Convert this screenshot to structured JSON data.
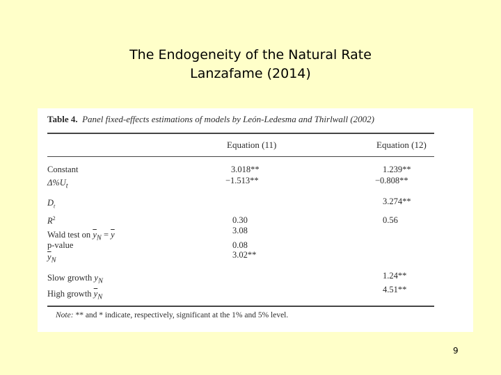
{
  "slide": {
    "title_line1": "The Endogeneity of the Natural Rate",
    "title_line2": "Lanzafame (2014)",
    "page_number": "9"
  },
  "table": {
    "caption_label": "Table 4.",
    "caption_text": "Panel fixed-effects estimations of models by León-Ledesma and Thirlwall (2002)",
    "columns": [
      "Equation (11)",
      "Equation (12)"
    ],
    "rows": [
      {
        "label": "Constant",
        "eq11": "3.018**",
        "eq12": "1.239**"
      },
      {
        "label": "Δ%U",
        "sub": "t",
        "eq11": "−1.513**",
        "eq12": "−0.808**"
      },
      {
        "label": "D",
        "sub": "t",
        "eq11": "",
        "eq12": "3.274**"
      },
      {
        "label": "R",
        "sup": "2",
        "eq11": "0.30",
        "eq12": "0.56"
      },
      {
        "label": "Wald test on",
        "expr_left": "y",
        "expr_left_sub": "N",
        "expr_eq": "=",
        "expr_right": "y",
        "eq11": "3.08",
        "eq12": ""
      },
      {
        "label": "p-value",
        "eq11": "0.08",
        "eq12": ""
      },
      {
        "label": "y",
        "sub": "N",
        "eq11": "3.02**",
        "eq12": ""
      },
      {
        "label": "Slow growth",
        "var": "y",
        "var_sub": "N",
        "eq11": "",
        "eq12": "1.24**"
      },
      {
        "label": "High growth",
        "var": "y",
        "var_sub": "N",
        "eq11": "",
        "eq12": "4.51**"
      }
    ],
    "note_label": "Note:",
    "note_text": "** and * indicate, respectively, significant at the 1% and 5% level."
  }
}
